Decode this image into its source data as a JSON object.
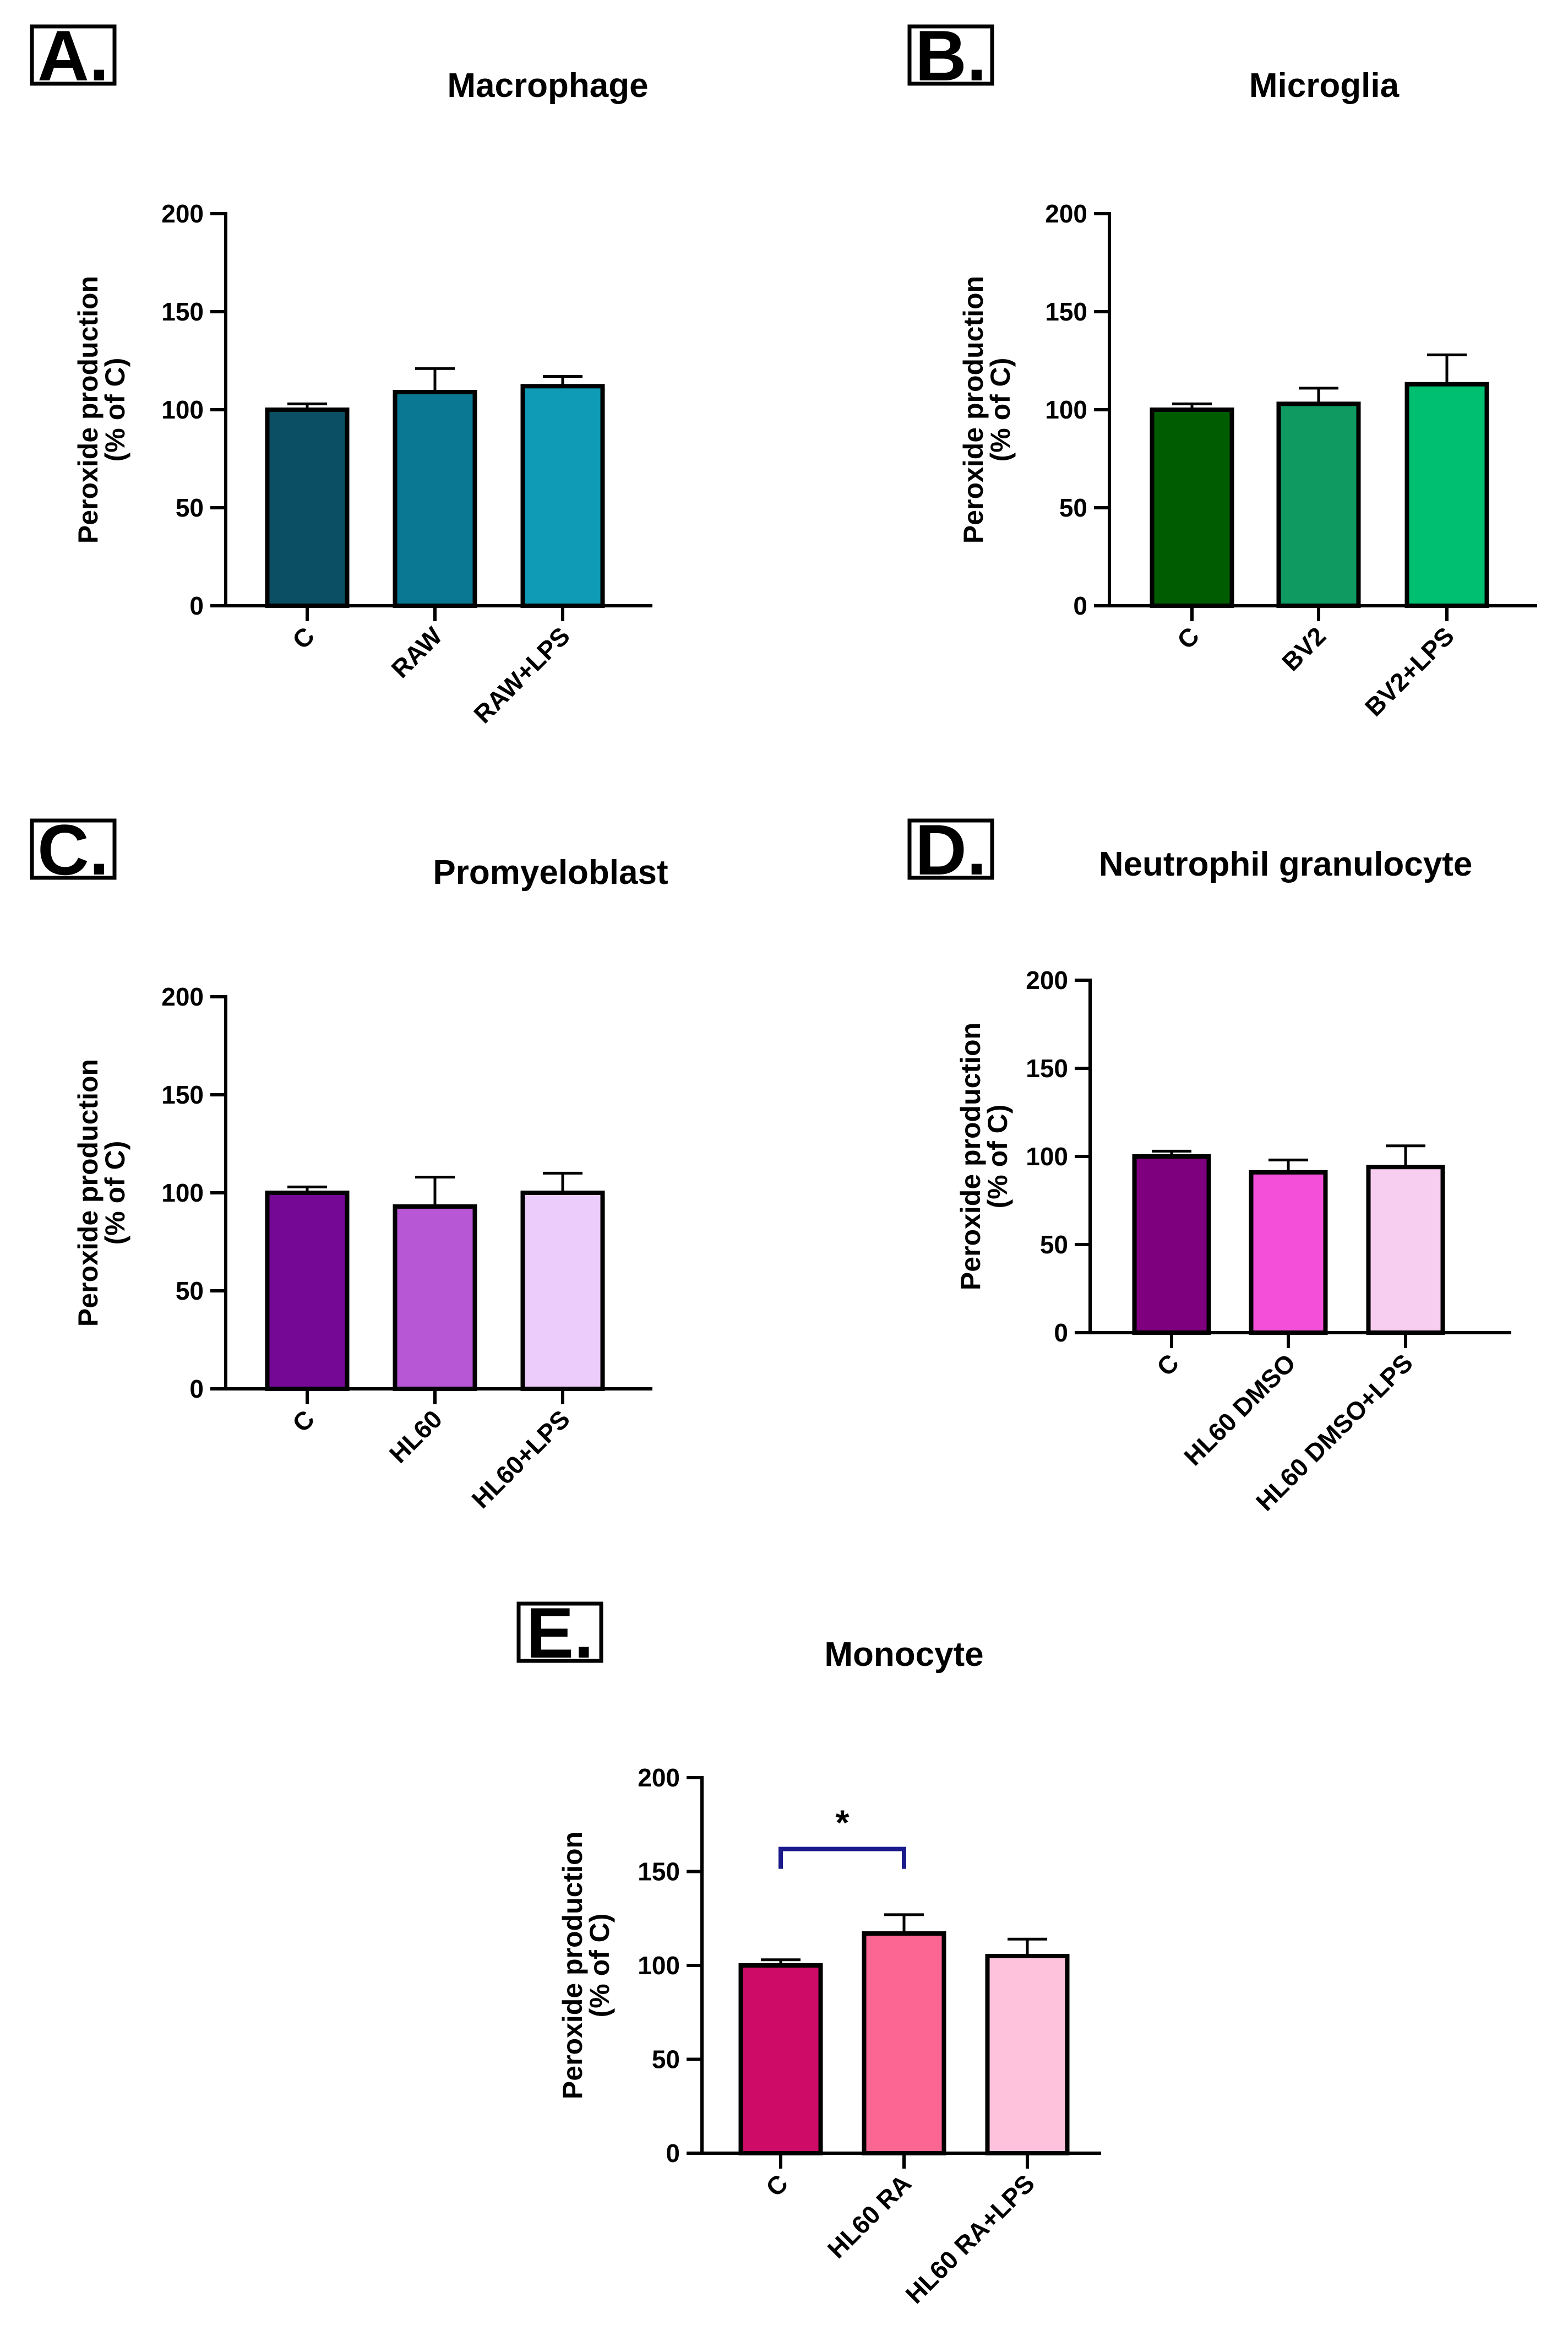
{
  "chart_data": [
    {
      "type": "bar",
      "panel": "A.",
      "title": "Macrophage",
      "ylabel": "Peroxide production",
      "ylabel2": "(% of C)",
      "ylim": [
        0,
        200
      ],
      "yticks": [
        "0",
        "50",
        "100",
        "150",
        "200"
      ],
      "categories": [
        "C",
        "RAW",
        "RAW+LPS"
      ],
      "values": [
        100,
        109,
        112
      ],
      "errors": [
        3,
        12,
        5
      ],
      "colors": [
        "#0a4f63",
        "#0a7892",
        "#0f9ab5"
      ],
      "significance": null
    },
    {
      "type": "bar",
      "panel": "B.",
      "title": "Microglia",
      "ylabel": "Peroxide production",
      "ylabel2": "(% of C)",
      "ylim": [
        0,
        200
      ],
      "yticks": [
        "0",
        "50",
        "100",
        "150",
        "200"
      ],
      "categories": [
        "C",
        "BV2",
        "BV2+LPS"
      ],
      "values": [
        100,
        103,
        113
      ],
      "errors": [
        3,
        8,
        15
      ],
      "colors": [
        "#005c00",
        "#0e9a60",
        "#00bf70"
      ],
      "significance": null
    },
    {
      "type": "bar",
      "panel": "C.",
      "title": "Promyeloblast",
      "ylabel": "Peroxide production",
      "ylabel2": "(% of C)",
      "ylim": [
        0,
        200
      ],
      "yticks": [
        "0",
        "50",
        "100",
        "150",
        "200"
      ],
      "categories": [
        "C",
        "HL60",
        "HL60+LPS"
      ],
      "values": [
        100,
        93,
        100
      ],
      "errors": [
        3,
        15,
        10
      ],
      "colors": [
        "#760896",
        "#b857d6",
        "#ecccfb"
      ],
      "significance": null
    },
    {
      "type": "bar",
      "panel": "D.",
      "title": "Neutrophil granulocyte",
      "ylabel": "Peroxide production",
      "ylabel2": "(% of C)",
      "ylim": [
        0,
        200
      ],
      "yticks": [
        "0",
        "50",
        "100",
        "150",
        "200"
      ],
      "categories": [
        "C",
        "HL60 DMSO",
        "HL60 DMSO+LPS"
      ],
      "values": [
        100,
        91,
        94
      ],
      "errors": [
        3,
        7,
        12
      ],
      "colors": [
        "#7e007e",
        "#f34fd8",
        "#f8cef0"
      ],
      "significance": null
    },
    {
      "type": "bar",
      "panel": "E.",
      "title": "Monocyte",
      "ylabel": "Peroxide production",
      "ylabel2": "(% of C)",
      "ylim": [
        0,
        200
      ],
      "yticks": [
        "0",
        "50",
        "100",
        "150",
        "200"
      ],
      "categories": [
        "C",
        "HL60 RA",
        "HL60 RA+LPS"
      ],
      "values": [
        100,
        117,
        105
      ],
      "errors": [
        3,
        10,
        9
      ],
      "colors": [
        "#cf0b68",
        "#fb6693",
        "#fec2dd"
      ],
      "significance": {
        "from": 0,
        "to": 1,
        "label": "*",
        "y": 162,
        "color": "#1a1a8c"
      }
    }
  ]
}
